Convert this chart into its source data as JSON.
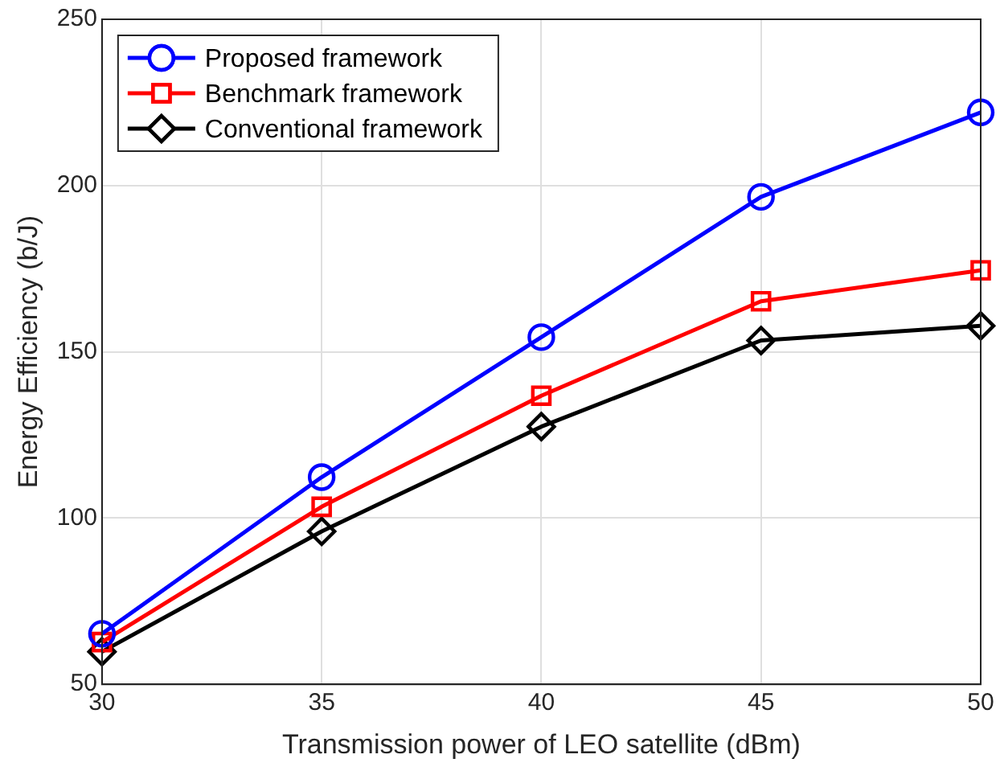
{
  "chart_data": {
    "type": "line",
    "xlabel": "Transmission power of LEO satellite (dBm)",
    "ylabel": "Energy Efficiency (b/J)",
    "x": [
      30,
      35,
      40,
      45,
      50
    ],
    "series": [
      {
        "name": "Proposed framework",
        "color": "#0000ff",
        "marker": "circle",
        "values": [
          65.2,
          112.3,
          154.4,
          196.6,
          222
        ]
      },
      {
        "name": "Benchmark framework",
        "color": "#ff0000",
        "marker": "square",
        "values": [
          62.7,
          103.4,
          136.8,
          165.2,
          174.5
        ]
      },
      {
        "name": "Conventional framework",
        "color": "#000000",
        "marker": "diamond",
        "values": [
          59.8,
          96,
          127.5,
          153.4,
          157.8
        ]
      }
    ],
    "xlim": [
      30,
      50
    ],
    "xticks": [
      30,
      35,
      40,
      45,
      50
    ],
    "ylim": [
      50,
      250
    ],
    "yticks": [
      50,
      100,
      150,
      200,
      250
    ],
    "grid": true,
    "legend": "top left",
    "line_style": "solid"
  }
}
